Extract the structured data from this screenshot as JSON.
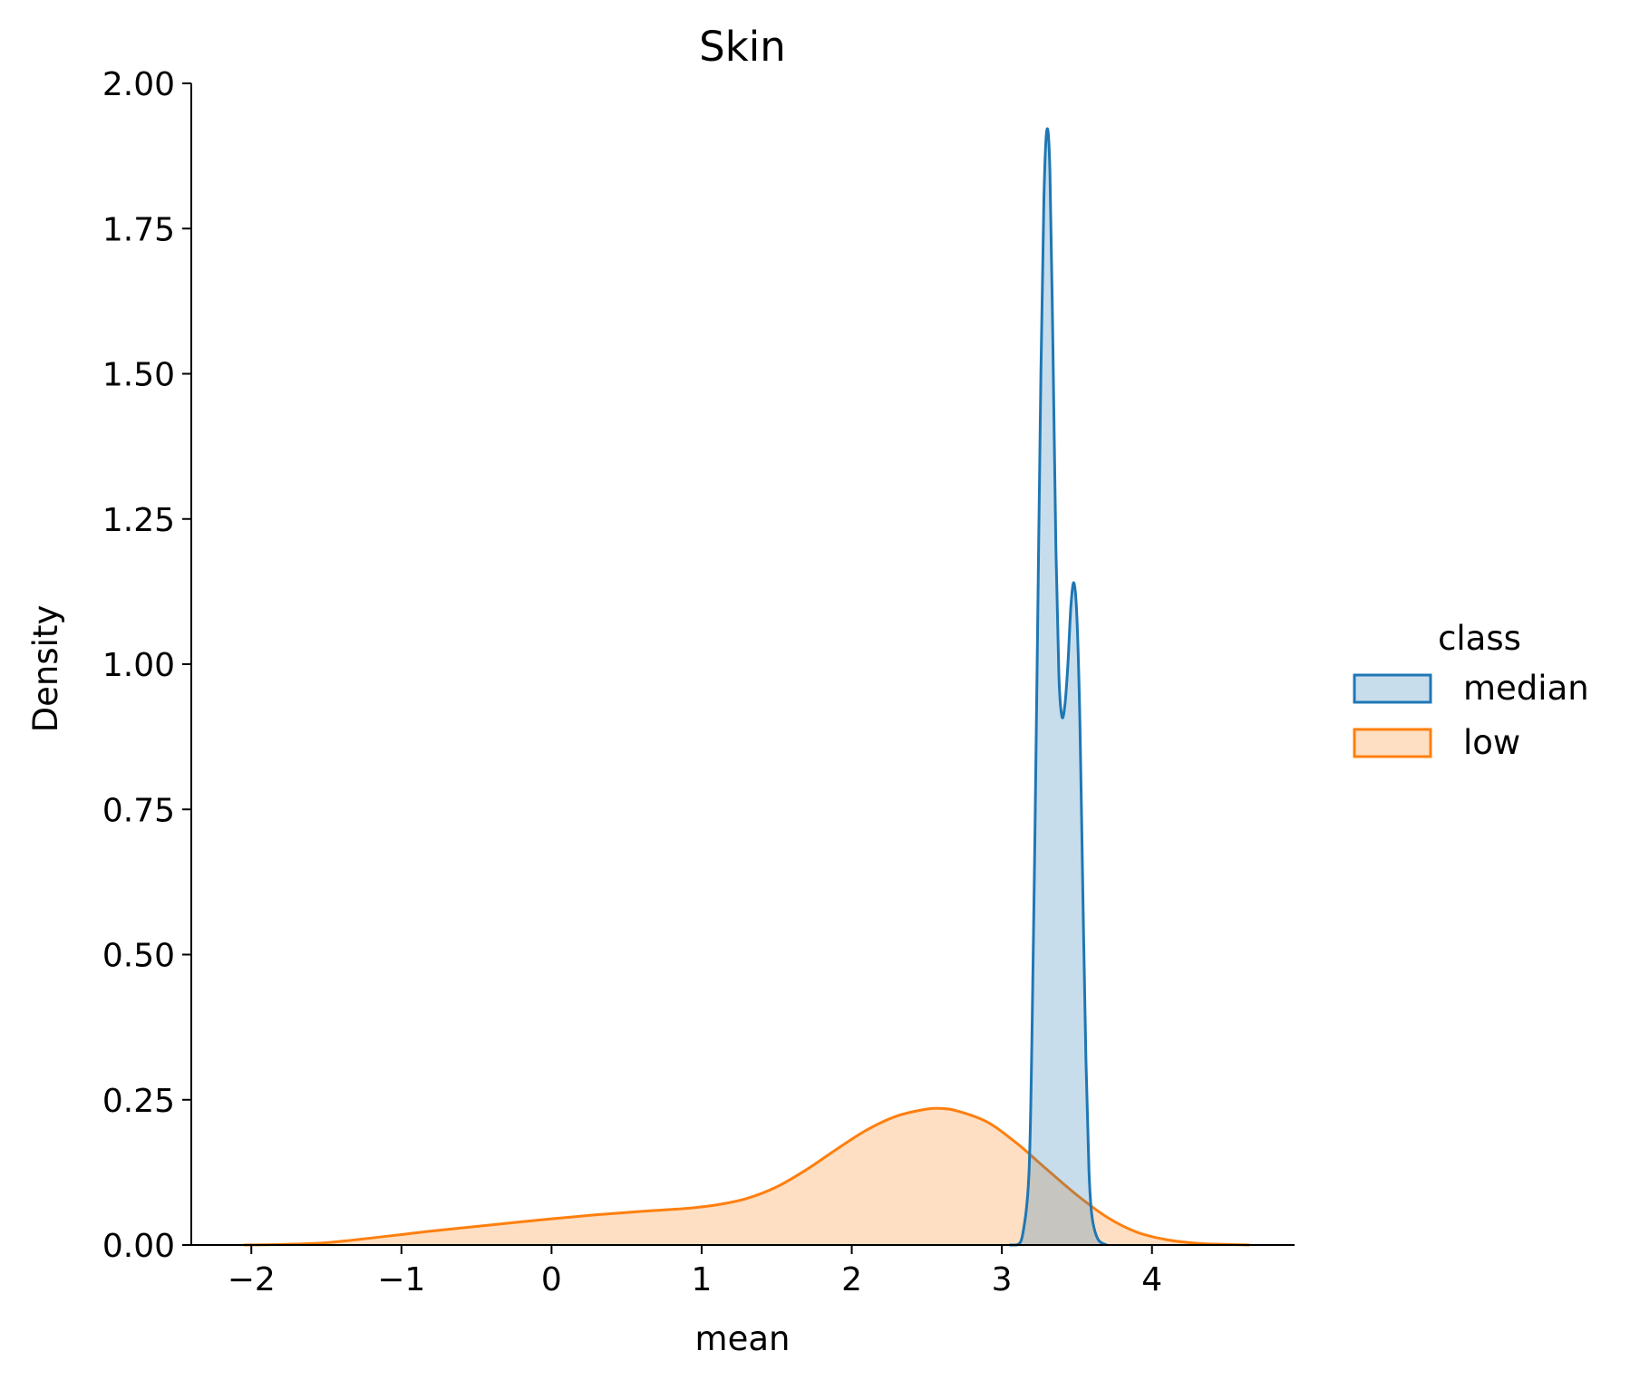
{
  "chart_data": {
    "type": "area",
    "title": "Skin",
    "xlabel": "mean",
    "ylabel": "Density",
    "xlim": [
      -2.4,
      4.95
    ],
    "ylim": [
      0,
      2.0
    ],
    "xticks": [
      -2,
      -1,
      0,
      1,
      2,
      3,
      4
    ],
    "xtick_labels": [
      "−2",
      "−1",
      "0",
      "1",
      "2",
      "3",
      "4"
    ],
    "yticks": [
      0,
      0.25,
      0.5,
      0.75,
      1.0,
      1.25,
      1.5,
      1.75,
      2.0
    ],
    "ytick_labels": [
      "0.00",
      "0.25",
      "0.50",
      "0.75",
      "1.00",
      "1.25",
      "1.50",
      "1.75",
      "2.00"
    ],
    "grid": false,
    "legend": {
      "title": "class",
      "position": "right",
      "entries": [
        "median",
        "low"
      ]
    },
    "series": [
      {
        "name": "median",
        "color": "#1f77b4",
        "fill": "#c6dcec",
        "points": [
          [
            3.05,
            0.0
          ],
          [
            3.1,
            0.0
          ],
          [
            3.14,
            0.02
          ],
          [
            3.18,
            0.12
          ],
          [
            3.2,
            0.35
          ],
          [
            3.22,
            0.7
          ],
          [
            3.24,
            1.1
          ],
          [
            3.26,
            1.5
          ],
          [
            3.28,
            1.8
          ],
          [
            3.3,
            1.92
          ],
          [
            3.32,
            1.85
          ],
          [
            3.34,
            1.55
          ],
          [
            3.36,
            1.2
          ],
          [
            3.38,
            0.98
          ],
          [
            3.4,
            0.91
          ],
          [
            3.42,
            0.93
          ],
          [
            3.44,
            1.0
          ],
          [
            3.46,
            1.1
          ],
          [
            3.48,
            1.14
          ],
          [
            3.5,
            1.08
          ],
          [
            3.52,
            0.9
          ],
          [
            3.54,
            0.6
          ],
          [
            3.56,
            0.32
          ],
          [
            3.58,
            0.13
          ],
          [
            3.6,
            0.05
          ],
          [
            3.64,
            0.01
          ],
          [
            3.7,
            0.0
          ]
        ]
      },
      {
        "name": "low",
        "color": "#ff7f0e",
        "fill": "#ffd8b6",
        "points": [
          [
            -2.05,
            0.0
          ],
          [
            -1.8,
            0.001
          ],
          [
            -1.5,
            0.004
          ],
          [
            -1.2,
            0.012
          ],
          [
            -1.0,
            0.018
          ],
          [
            -0.8,
            0.024
          ],
          [
            -0.5,
            0.032
          ],
          [
            -0.2,
            0.04
          ],
          [
            0.0,
            0.045
          ],
          [
            0.3,
            0.052
          ],
          [
            0.6,
            0.058
          ],
          [
            0.9,
            0.063
          ],
          [
            1.1,
            0.069
          ],
          [
            1.3,
            0.08
          ],
          [
            1.5,
            0.1
          ],
          [
            1.7,
            0.13
          ],
          [
            1.9,
            0.165
          ],
          [
            2.1,
            0.198
          ],
          [
            2.3,
            0.222
          ],
          [
            2.5,
            0.234
          ],
          [
            2.6,
            0.235
          ],
          [
            2.7,
            0.231
          ],
          [
            2.9,
            0.212
          ],
          [
            3.1,
            0.175
          ],
          [
            3.3,
            0.13
          ],
          [
            3.5,
            0.086
          ],
          [
            3.7,
            0.048
          ],
          [
            3.9,
            0.022
          ],
          [
            4.1,
            0.009
          ],
          [
            4.3,
            0.003
          ],
          [
            4.5,
            0.001
          ],
          [
            4.65,
            0.0
          ]
        ]
      }
    ]
  }
}
